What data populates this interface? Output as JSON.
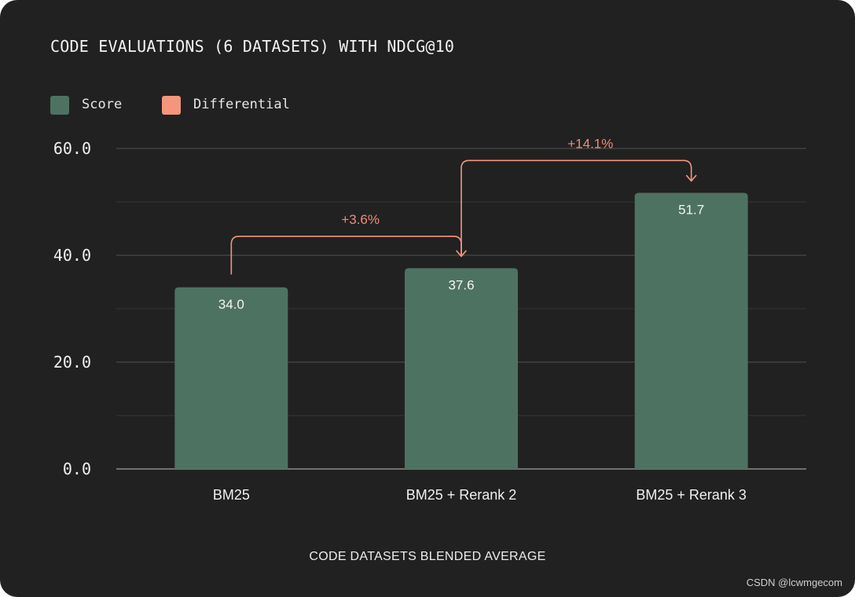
{
  "watermark": "CSDN @lcwmgecom",
  "colors": {
    "background": "#212121",
    "score": "#4e7262",
    "differential": "#f5957c",
    "grid": "#4a4a4a",
    "axis": "#8a8a8a"
  },
  "legend": [
    {
      "label": "Score",
      "color": "#4e7262"
    },
    {
      "label": "Differential",
      "color": "#f5957c"
    }
  ],
  "chart_data": {
    "type": "bar",
    "title": "CODE EVALUATIONS (6 DATASETS) WITH NDCG@10",
    "xlabel": "CODE DATASETS BLENDED AVERAGE",
    "ylabel": "",
    "categories": [
      "BM25",
      "BM25 + Rerank 2",
      "BM25 + Rerank 3"
    ],
    "series": [
      {
        "name": "Score",
        "values": [
          34.0,
          37.6,
          51.7
        ],
        "labels": [
          "34.0",
          "37.6",
          "51.7"
        ]
      }
    ],
    "differentials": [
      {
        "from": 0,
        "to": 1,
        "label": "+3.6%"
      },
      {
        "from": 1,
        "to": 2,
        "label": "+14.1%"
      }
    ],
    "ylim": [
      0,
      60
    ],
    "yticks": [
      0,
      20,
      40,
      60
    ],
    "ytick_labels": [
      "0.0",
      "20.0",
      "40.0",
      "60.0"
    ],
    "minor_gridlines": [
      10,
      30,
      50
    ],
    "grid": true,
    "legend_position": "top-left"
  }
}
